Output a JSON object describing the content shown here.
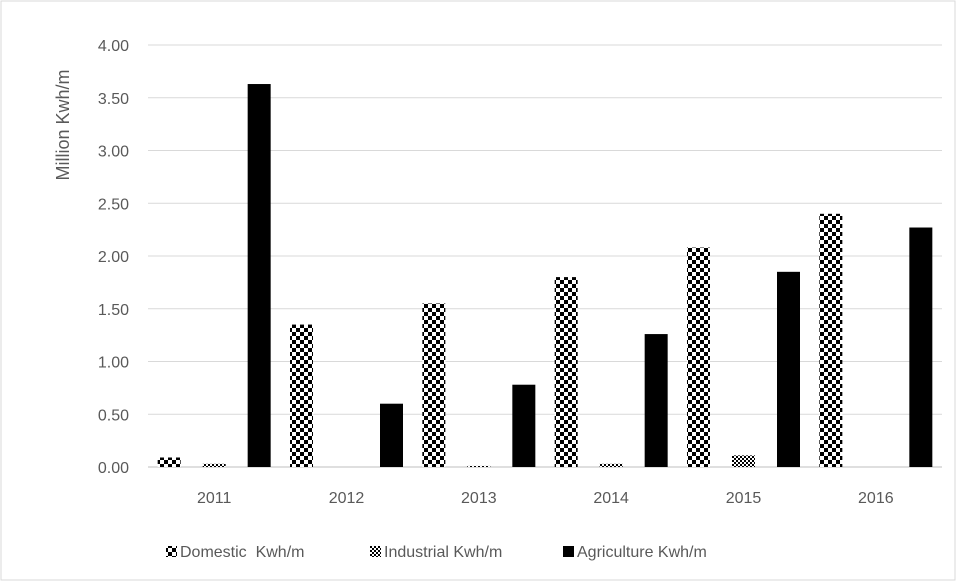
{
  "chart_data": {
    "type": "bar",
    "title": "",
    "xlabel": "",
    "ylabel": "Million Kwh/m",
    "categories": [
      "2011",
      "2012",
      "2013",
      "2014",
      "2015",
      "2016"
    ],
    "ylim": [
      0,
      4
    ],
    "yticks": [
      "0.00",
      "0.50",
      "1.00",
      "1.50",
      "2.00",
      "2.50",
      "3.00",
      "3.50",
      "4.00"
    ],
    "grid": true,
    "legend_position": "bottom",
    "series": [
      {
        "name": "Domestic  Kwh/m",
        "values": [
          0.09,
          1.35,
          1.55,
          1.8,
          2.08,
          2.4
        ],
        "pattern": "checker-large",
        "color": "#000000"
      },
      {
        "name": "Industrial Kwh/m",
        "values": [
          0.03,
          0.0,
          0.01,
          0.03,
          0.11,
          0.0
        ],
        "pattern": "checker-small",
        "color": "#000000"
      },
      {
        "name": "Agriculture Kwh/m",
        "values": [
          3.63,
          0.6,
          0.78,
          1.26,
          1.85,
          2.27
        ],
        "pattern": "solid",
        "color": "#000000"
      }
    ]
  }
}
